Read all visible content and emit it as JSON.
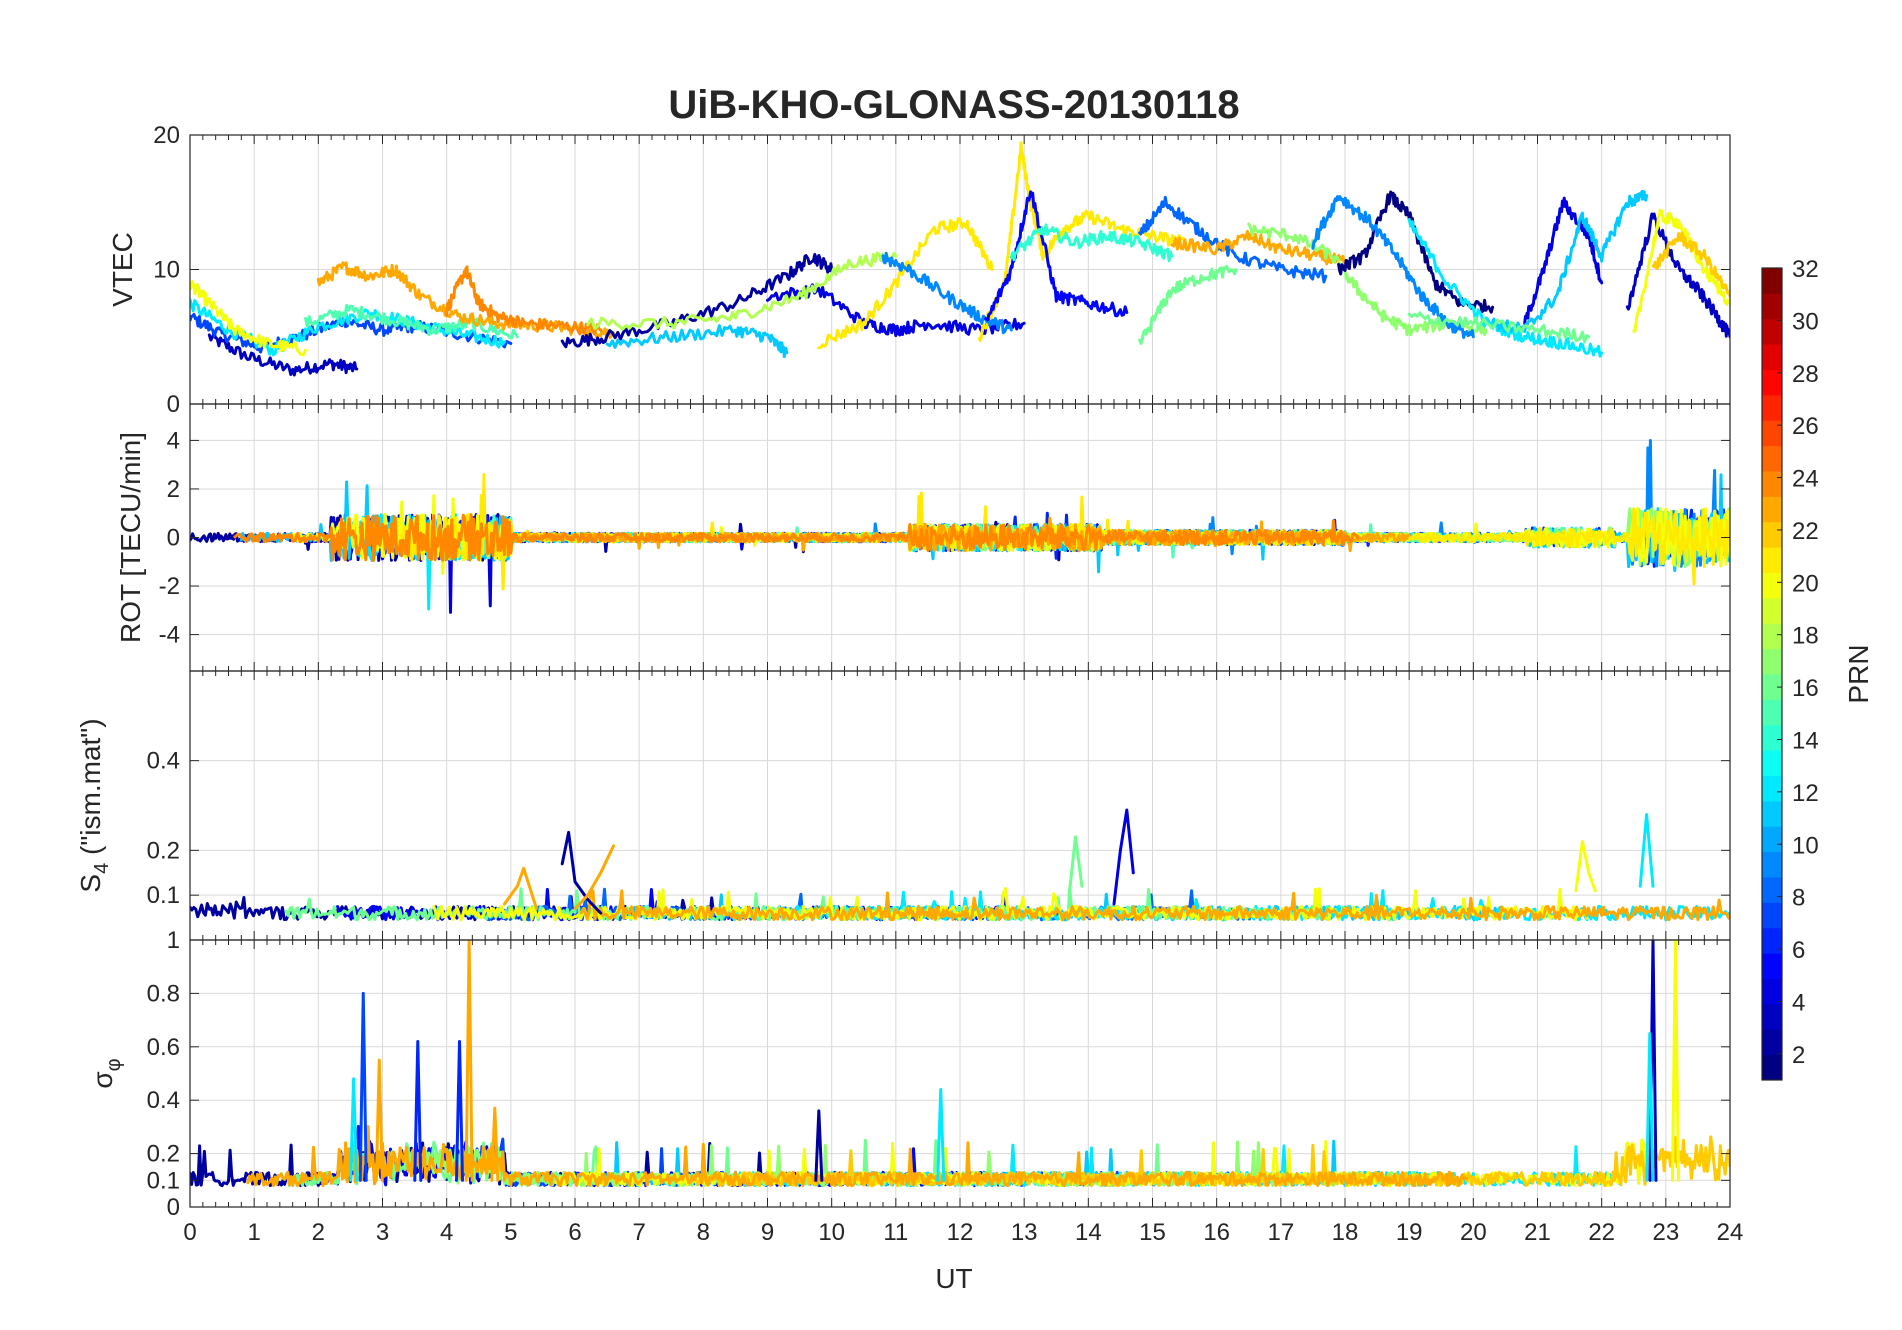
{
  "chart_data": {
    "type": "line",
    "title": "UiB-KHO-GLONASS-20130118",
    "xlabel": "UT",
    "xlim": [
      0,
      24
    ],
    "x_ticks": [
      "0",
      "1",
      "2",
      "3",
      "4",
      "5",
      "6",
      "7",
      "8",
      "9",
      "10",
      "11",
      "12",
      "13",
      "14",
      "15",
      "16",
      "17",
      "18",
      "19",
      "20",
      "21",
      "22",
      "23",
      "24"
    ],
    "colorbar": {
      "label": "PRN",
      "range": [
        1,
        32
      ],
      "ticks": [
        "2",
        "4",
        "6",
        "8",
        "10",
        "12",
        "14",
        "16",
        "18",
        "20",
        "22",
        "24",
        "26",
        "28",
        "30",
        "32"
      ]
    },
    "panels": [
      {
        "name": "VTEC",
        "ylabel": "VTEC",
        "ylim": [
          0,
          20
        ],
        "y_ticks": [
          "0",
          "10",
          "20"
        ],
        "series": [
          {
            "prn": 3,
            "x": [
              0.3,
              0.9,
              1.6,
              2.2,
              2.6
            ],
            "y": [
              5,
              3.5,
              2.5,
              3,
              2.6
            ]
          },
          {
            "prn": 7,
            "x": [
              0,
              0.5,
              1.1,
              1.7,
              2.4,
              3.0,
              3.5,
              4.2,
              5.0
            ],
            "y": [
              6.5,
              5.2,
              4.2,
              5.0,
              6.2,
              5.5,
              5.8,
              5.2,
              4.5
            ]
          },
          {
            "prn": 12,
            "x": [
              0,
              0.6,
              1.3,
              2.0,
              2.8,
              3.5,
              4.2,
              4.9
            ],
            "y": [
              7.5,
              5.5,
              4.0,
              5.8,
              6.8,
              6.0,
              5.2,
              4.6
            ]
          },
          {
            "prn": 15,
            "x": [
              1.8,
              2.5,
              3.2,
              3.8,
              4.4,
              5.1
            ],
            "y": [
              6.0,
              7.0,
              6.2,
              5.5,
              6.0,
              5.0
            ]
          },
          {
            "prn": 20,
            "x": [
              0,
              0.3,
              0.7,
              1.2,
              1.8
            ],
            "y": [
              9.0,
              7.5,
              5.5,
              4.5,
              4.0
            ]
          },
          {
            "prn": 23,
            "x": [
              2.0,
              2.4,
              2.8,
              3.2,
              3.6,
              4.2,
              4.8,
              5.5,
              6.2,
              6.6
            ],
            "y": [
              9.0,
              10.2,
              9.5,
              10.0,
              8.0,
              6.5,
              6.0,
              5.8,
              5.5,
              5.3
            ]
          },
          {
            "prn": 24,
            "x": [
              4.0,
              4.3,
              4.5,
              4.8,
              5.2,
              5.8,
              6.4
            ],
            "y": [
              7.0,
              10.0,
              7.5,
              6.5,
              6.0,
              5.8,
              5.5
            ]
          },
          {
            "prn": 2,
            "x": [
              5.8,
              6.5,
              7.5,
              8.5,
              9.3,
              9.7,
              10.0
            ],
            "y": [
              4.5,
              5.0,
              6.0,
              7.5,
              9.5,
              11.0,
              10.0
            ]
          },
          {
            "prn": 4,
            "x": [
              9.0,
              9.8,
              10.5,
              11.0,
              11.5,
              12.3,
              13.0
            ],
            "y": [
              8.0,
              8.5,
              6.0,
              5.5,
              6.0,
              5.5,
              6.0
            ]
          },
          {
            "prn": 11,
            "x": [
              6.5,
              7.5,
              8.5,
              9.0,
              9.3
            ],
            "y": [
              4.5,
              5.0,
              5.5,
              5.0,
              3.8
            ]
          },
          {
            "prn": 18,
            "x": [
              6.2,
              7.5,
              8.5,
              9.5,
              10.3,
              11.0
            ],
            "y": [
              6.0,
              6.0,
              6.5,
              8.0,
              10.5,
              11.0
            ]
          },
          {
            "prn": 21,
            "x": [
              9.8,
              10.5,
              11.0,
              11.6,
              12.1,
              12.5
            ],
            "y": [
              4.5,
              6.0,
              9.0,
              13.0,
              13.5,
              10.0
            ]
          },
          {
            "prn": 21,
            "x": [
              12.3,
              12.7,
              12.95,
              13.1,
              13.3,
              13.6,
              14.0,
              14.5,
              15.0,
              15.5
            ],
            "y": [
              5.0,
              9.0,
              19.0,
              15.0,
              11.0,
              13.0,
              14.0,
              13.0,
              12.5,
              12.0
            ]
          },
          {
            "prn": 9,
            "x": [
              10.8,
              11.2,
              11.8,
              12.3,
              12.8
            ],
            "y": [
              11.0,
              10.0,
              8.0,
              6.5,
              5.5
            ]
          },
          {
            "prn": 5,
            "x": [
              12.4,
              12.8,
              13.1,
              13.5,
              14.0,
              14.6
            ],
            "y": [
              6.0,
              10.0,
              16.0,
              8.0,
              7.5,
              6.8
            ]
          },
          {
            "prn": 14,
            "x": [
              12.8,
              13.3,
              13.8,
              14.3,
              14.8,
              15.3
            ],
            "y": [
              11.0,
              13.0,
              12.0,
              12.5,
              12.0,
              11.0
            ]
          },
          {
            "prn": 8,
            "x": [
              14.8,
              15.2,
              15.7,
              16.3,
              17.0,
              17.7
            ],
            "y": [
              12.5,
              15.0,
              13.0,
              11.0,
              10.0,
              9.5
            ]
          },
          {
            "prn": 23,
            "x": [
              15.3,
              16.0,
              16.5,
              17.0,
              17.6,
              18.0
            ],
            "y": [
              12.0,
              11.5,
              12.5,
              11.5,
              11.0,
              10.5
            ]
          },
          {
            "prn": 16,
            "x": [
              14.8,
              15.3,
              15.8,
              16.3
            ],
            "y": [
              4.5,
              8.5,
              9.5,
              10.0
            ]
          },
          {
            "prn": 17,
            "x": [
              16.5,
              17.2,
              17.8,
              18.2,
              18.6,
              19.0,
              19.6,
              20.2
            ],
            "y": [
              13.0,
              12.5,
              11.0,
              8.5,
              6.5,
              5.5,
              6.0,
              5.5
            ]
          },
          {
            "prn": 1,
            "x": [
              17.9,
              18.3,
              18.7,
              19.0,
              19.4,
              19.8,
              20.3
            ],
            "y": [
              10.0,
              11.0,
              15.5,
              14.0,
              9.0,
              7.5,
              7.2
            ]
          },
          {
            "prn": 9,
            "x": [
              17.5,
              17.9,
              18.4,
              18.8,
              19.2,
              19.6,
              20.0
            ],
            "y": [
              12.0,
              15.5,
              13.5,
              11.0,
              8.0,
              6.0,
              5.0
            ]
          },
          {
            "prn": 12,
            "x": [
              19.0,
              19.6,
              20.2,
              20.8,
              21.4,
              22.0
            ],
            "y": [
              13.5,
              9.0,
              6.0,
              5.0,
              4.5,
              3.8
            ]
          },
          {
            "prn": 4,
            "x": [
              20.8,
              21.1,
              21.4,
              21.8,
              22.0
            ],
            "y": [
              6.0,
              10.0,
              15.0,
              12.5,
              9.0
            ]
          },
          {
            "prn": 11,
            "x": [
              20.3,
              20.8,
              21.3,
              21.7,
              22.0,
              22.4,
              22.7
            ],
            "y": [
              6.0,
              5.5,
              8.0,
              14.0,
              11.0,
              15.0,
              15.5
            ]
          },
          {
            "prn": 3,
            "x": [
              22.4,
              22.8,
              23.2,
              23.5,
              23.8,
              24.0
            ],
            "y": [
              7.0,
              14.0,
              10.0,
              8.5,
              6.5,
              5.0
            ]
          },
          {
            "prn": 20,
            "x": [
              22.5,
              22.9,
              23.2,
              23.6,
              24.0
            ],
            "y": [
              5.0,
              14.0,
              13.5,
              10.0,
              7.5
            ]
          },
          {
            "prn": 22,
            "x": [
              22.8,
              23.2,
              23.6,
              24.0
            ],
            "y": [
              10.0,
              12.5,
              11.0,
              8.0
            ]
          },
          {
            "prn": 16,
            "x": [
              19.0,
              20.0,
              21.0,
              21.8
            ],
            "y": [
              6.5,
              6.0,
              5.5,
              5.0
            ]
          }
        ]
      },
      {
        "name": "ROT",
        "ylabel": "ROT [TECU/min]",
        "ylim": [
          -5.5,
          5.5
        ],
        "y_ticks": [
          "-4",
          "-2",
          "0",
          "2",
          "4"
        ]
      },
      {
        "name": "S4",
        "ylabel": "S4 (\"ism.mat\")",
        "ylabel_main": "S",
        "ylabel_sub": "4",
        "ylabel_rest": " (\"ism.mat\")",
        "ylim": [
          0,
          0.6
        ],
        "y_ticks": [
          "0.1",
          "0.2",
          "0.4"
        ],
        "series": [
          {
            "prn": 2,
            "x": [
              5.8,
              5.9,
              6.0,
              6.2,
              6.4
            ],
            "y": [
              0.17,
              0.24,
              0.13,
              0.09,
              0.06
            ]
          },
          {
            "prn": 23,
            "x": [
              4.9,
              5.1,
              5.2,
              5.4
            ],
            "y": [
              0.08,
              0.12,
              0.16,
              0.07
            ]
          },
          {
            "prn": 23,
            "x": [
              6.0,
              6.2,
              6.4,
              6.6
            ],
            "y": [
              0.07,
              0.1,
              0.15,
              0.21
            ]
          },
          {
            "prn": 4,
            "x": [
              14.4,
              14.5,
              14.6,
              14.7
            ],
            "y": [
              0.08,
              0.2,
              0.29,
              0.15
            ]
          },
          {
            "prn": 16,
            "x": [
              13.7,
              13.8,
              13.9
            ],
            "y": [
              0.1,
              0.23,
              0.12
            ]
          },
          {
            "prn": 20,
            "x": [
              21.6,
              21.7,
              21.8,
              21.9
            ],
            "y": [
              0.11,
              0.22,
              0.15,
              0.11
            ]
          },
          {
            "prn": 12,
            "x": [
              22.6,
              22.7,
              22.8
            ],
            "y": [
              0.12,
              0.28,
              0.12
            ]
          }
        ]
      },
      {
        "name": "sigma_phi",
        "ylabel": "σφ",
        "ylabel_main": "σ",
        "ylabel_sub": "φ",
        "ylim": [
          0,
          1
        ],
        "y_ticks": [
          "0",
          "0.1",
          "0.2",
          "0.4",
          "0.6",
          "0.8",
          "1"
        ],
        "spikes": [
          {
            "prn": 7,
            "x": 2.7,
            "y": 0.8
          },
          {
            "prn": 6,
            "x": 3.55,
            "y": 0.62
          },
          {
            "prn": 6,
            "x": 4.2,
            "y": 0.62
          },
          {
            "prn": 23,
            "x": 4.35,
            "y": 1.0
          },
          {
            "prn": 23,
            "x": 2.95,
            "y": 0.55
          },
          {
            "prn": 23,
            "x": 4.75,
            "y": 0.37
          },
          {
            "prn": 12,
            "x": 2.55,
            "y": 0.48
          },
          {
            "prn": 2,
            "x": 9.8,
            "y": 0.36
          },
          {
            "prn": 3,
            "x": 22.8,
            "y": 1.0
          },
          {
            "prn": 20,
            "x": 23.15,
            "y": 1.0
          },
          {
            "prn": 12,
            "x": 22.75,
            "y": 0.65
          },
          {
            "prn": 12,
            "x": 11.7,
            "y": 0.44
          }
        ]
      }
    ]
  }
}
